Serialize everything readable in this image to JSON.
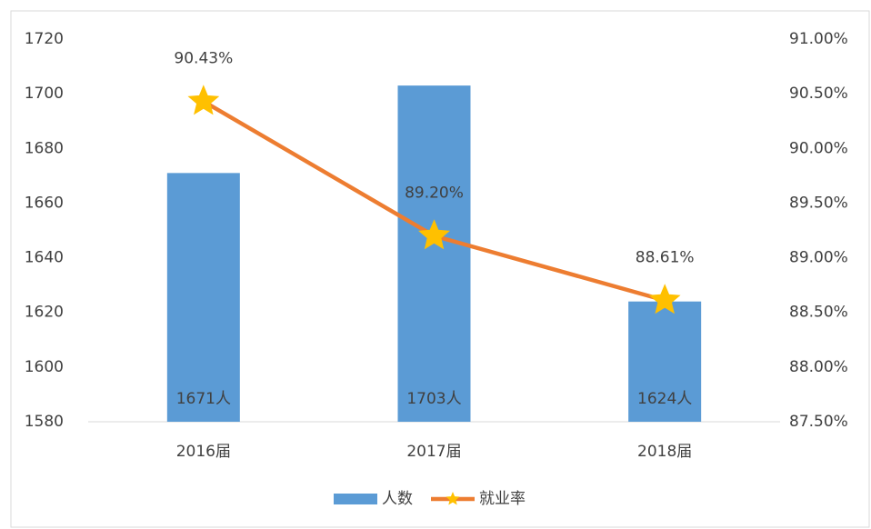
{
  "chart_data": {
    "type": "bar",
    "categories": [
      "2016届",
      "2017届",
      "2018届"
    ],
    "series": [
      {
        "name": "人数",
        "type": "bar",
        "color": "#5b9bd5",
        "values": [
          1671,
          1703,
          1624
        ],
        "value_labels": [
          "1671人",
          "1703人",
          "1624人"
        ]
      },
      {
        "name": "就业率",
        "type": "line",
        "axis": "y2",
        "color": "#ed7d31",
        "marker_color": "#ffc000",
        "values": [
          90.43,
          89.2,
          88.61
        ],
        "value_labels": [
          "90.43%",
          "89.20%",
          "88.61%"
        ]
      }
    ],
    "ylim": [
      1580,
      1720
    ],
    "yticks": [
      1580,
      1600,
      1620,
      1640,
      1660,
      1680,
      1700,
      1720
    ],
    "y2lim": [
      87.5,
      91
    ],
    "y2ticks": [
      {
        "value": 87.5,
        "label": "87.50%"
      },
      {
        "value": 88,
        "label": "88.00%"
      },
      {
        "value": 88.5,
        "label": "88.50%"
      },
      {
        "value": 89,
        "label": "89.00%"
      },
      {
        "value": 89.5,
        "label": "89.50%"
      },
      {
        "value": 90,
        "label": "90.00%"
      },
      {
        "value": 90.5,
        "label": "90.50%"
      },
      {
        "value": 91,
        "label": "91.00%"
      }
    ],
    "grid": false,
    "legend": "bottom"
  }
}
